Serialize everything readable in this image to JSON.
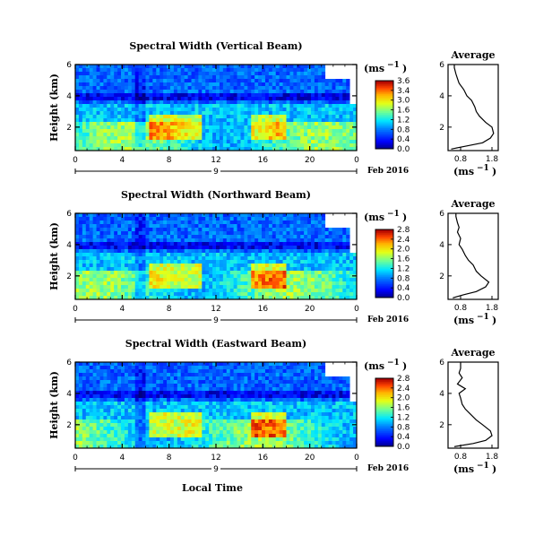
{
  "chart_data": {
    "type": "heatmap",
    "date_label": "Feb 2016",
    "date_day": "9",
    "xlabel": "Local Time",
    "time_ticks": [
      "0",
      "4",
      "8",
      "12",
      "16",
      "20",
      "0"
    ],
    "xlim": [
      0,
      24
    ],
    "ylabel": "Height (km)",
    "height_ticks": [
      "6",
      "4",
      "2"
    ],
    "ylim": [
      0.5,
      6
    ],
    "unit": "(ms",
    "unit_exp": "−1",
    "average_title": "Average",
    "panels": [
      {
        "title": "Spectral Width (Vertical Beam)",
        "colorbar_ticks": [
          "3.6",
          "3.4",
          "3.0",
          "1.6",
          "1.2",
          "0.8",
          "0.4",
          "0.0"
        ],
        "avg_xticks": [
          "0.8",
          "1.8"
        ],
        "avg_xlim": [
          0.4,
          2.0
        ],
        "avg_profile": {
          "height": [
            0.6,
            0.8,
            1.0,
            1.3,
            1.6,
            2.0,
            2.3,
            2.7,
            3.0,
            3.3,
            3.7,
            4.0,
            4.4,
            4.8,
            5.1,
            5.4,
            5.8,
            6.0
          ],
          "value": [
            0.5,
            1.0,
            1.5,
            1.75,
            1.85,
            1.8,
            1.6,
            1.4,
            1.3,
            1.25,
            1.15,
            1.0,
            0.9,
            0.75,
            0.7,
            0.65,
            0.6,
            0.6
          ]
        }
      },
      {
        "title": "Spectral Width (Northward Beam)",
        "colorbar_ticks": [
          "2.8",
          "2.4",
          "2.0",
          "1.6",
          "1.2",
          "0.8",
          "0.4",
          "0.0"
        ],
        "avg_xticks": [
          "0.8",
          "1.8"
        ],
        "avg_xlim": [
          0.4,
          2.0
        ],
        "avg_profile": {
          "height": [
            0.6,
            0.8,
            1.0,
            1.3,
            1.6,
            2.0,
            2.3,
            2.7,
            3.0,
            3.3,
            3.7,
            4.0,
            4.4,
            4.8,
            5.1,
            5.4,
            5.8,
            6.0
          ],
          "value": [
            0.55,
            0.9,
            1.3,
            1.6,
            1.7,
            1.45,
            1.3,
            1.2,
            1.05,
            0.95,
            0.85,
            0.75,
            0.8,
            0.7,
            0.75,
            0.7,
            0.65,
            0.65
          ]
        }
      },
      {
        "title": "Spectral Width (Eastward Beam)",
        "colorbar_ticks": [
          "2.8",
          "2.4",
          "2.0",
          "1.6",
          "1.2",
          "0.8",
          "0.4",
          "0.0"
        ],
        "avg_xticks": [
          "0.8",
          "1.8"
        ],
        "avg_xlim": [
          0.4,
          2.0
        ],
        "avg_profile": {
          "height": [
            0.6,
            0.8,
            1.0,
            1.3,
            1.6,
            2.0,
            2.3,
            2.7,
            3.0,
            3.3,
            3.7,
            4.0,
            4.3,
            4.6,
            5.0,
            5.3,
            5.6,
            6.0
          ],
          "value": [
            0.6,
            1.2,
            1.6,
            1.8,
            1.75,
            1.5,
            1.3,
            1.1,
            0.95,
            0.85,
            0.8,
            0.75,
            0.95,
            0.7,
            0.85,
            0.75,
            0.8,
            0.8
          ]
        }
      }
    ]
  }
}
